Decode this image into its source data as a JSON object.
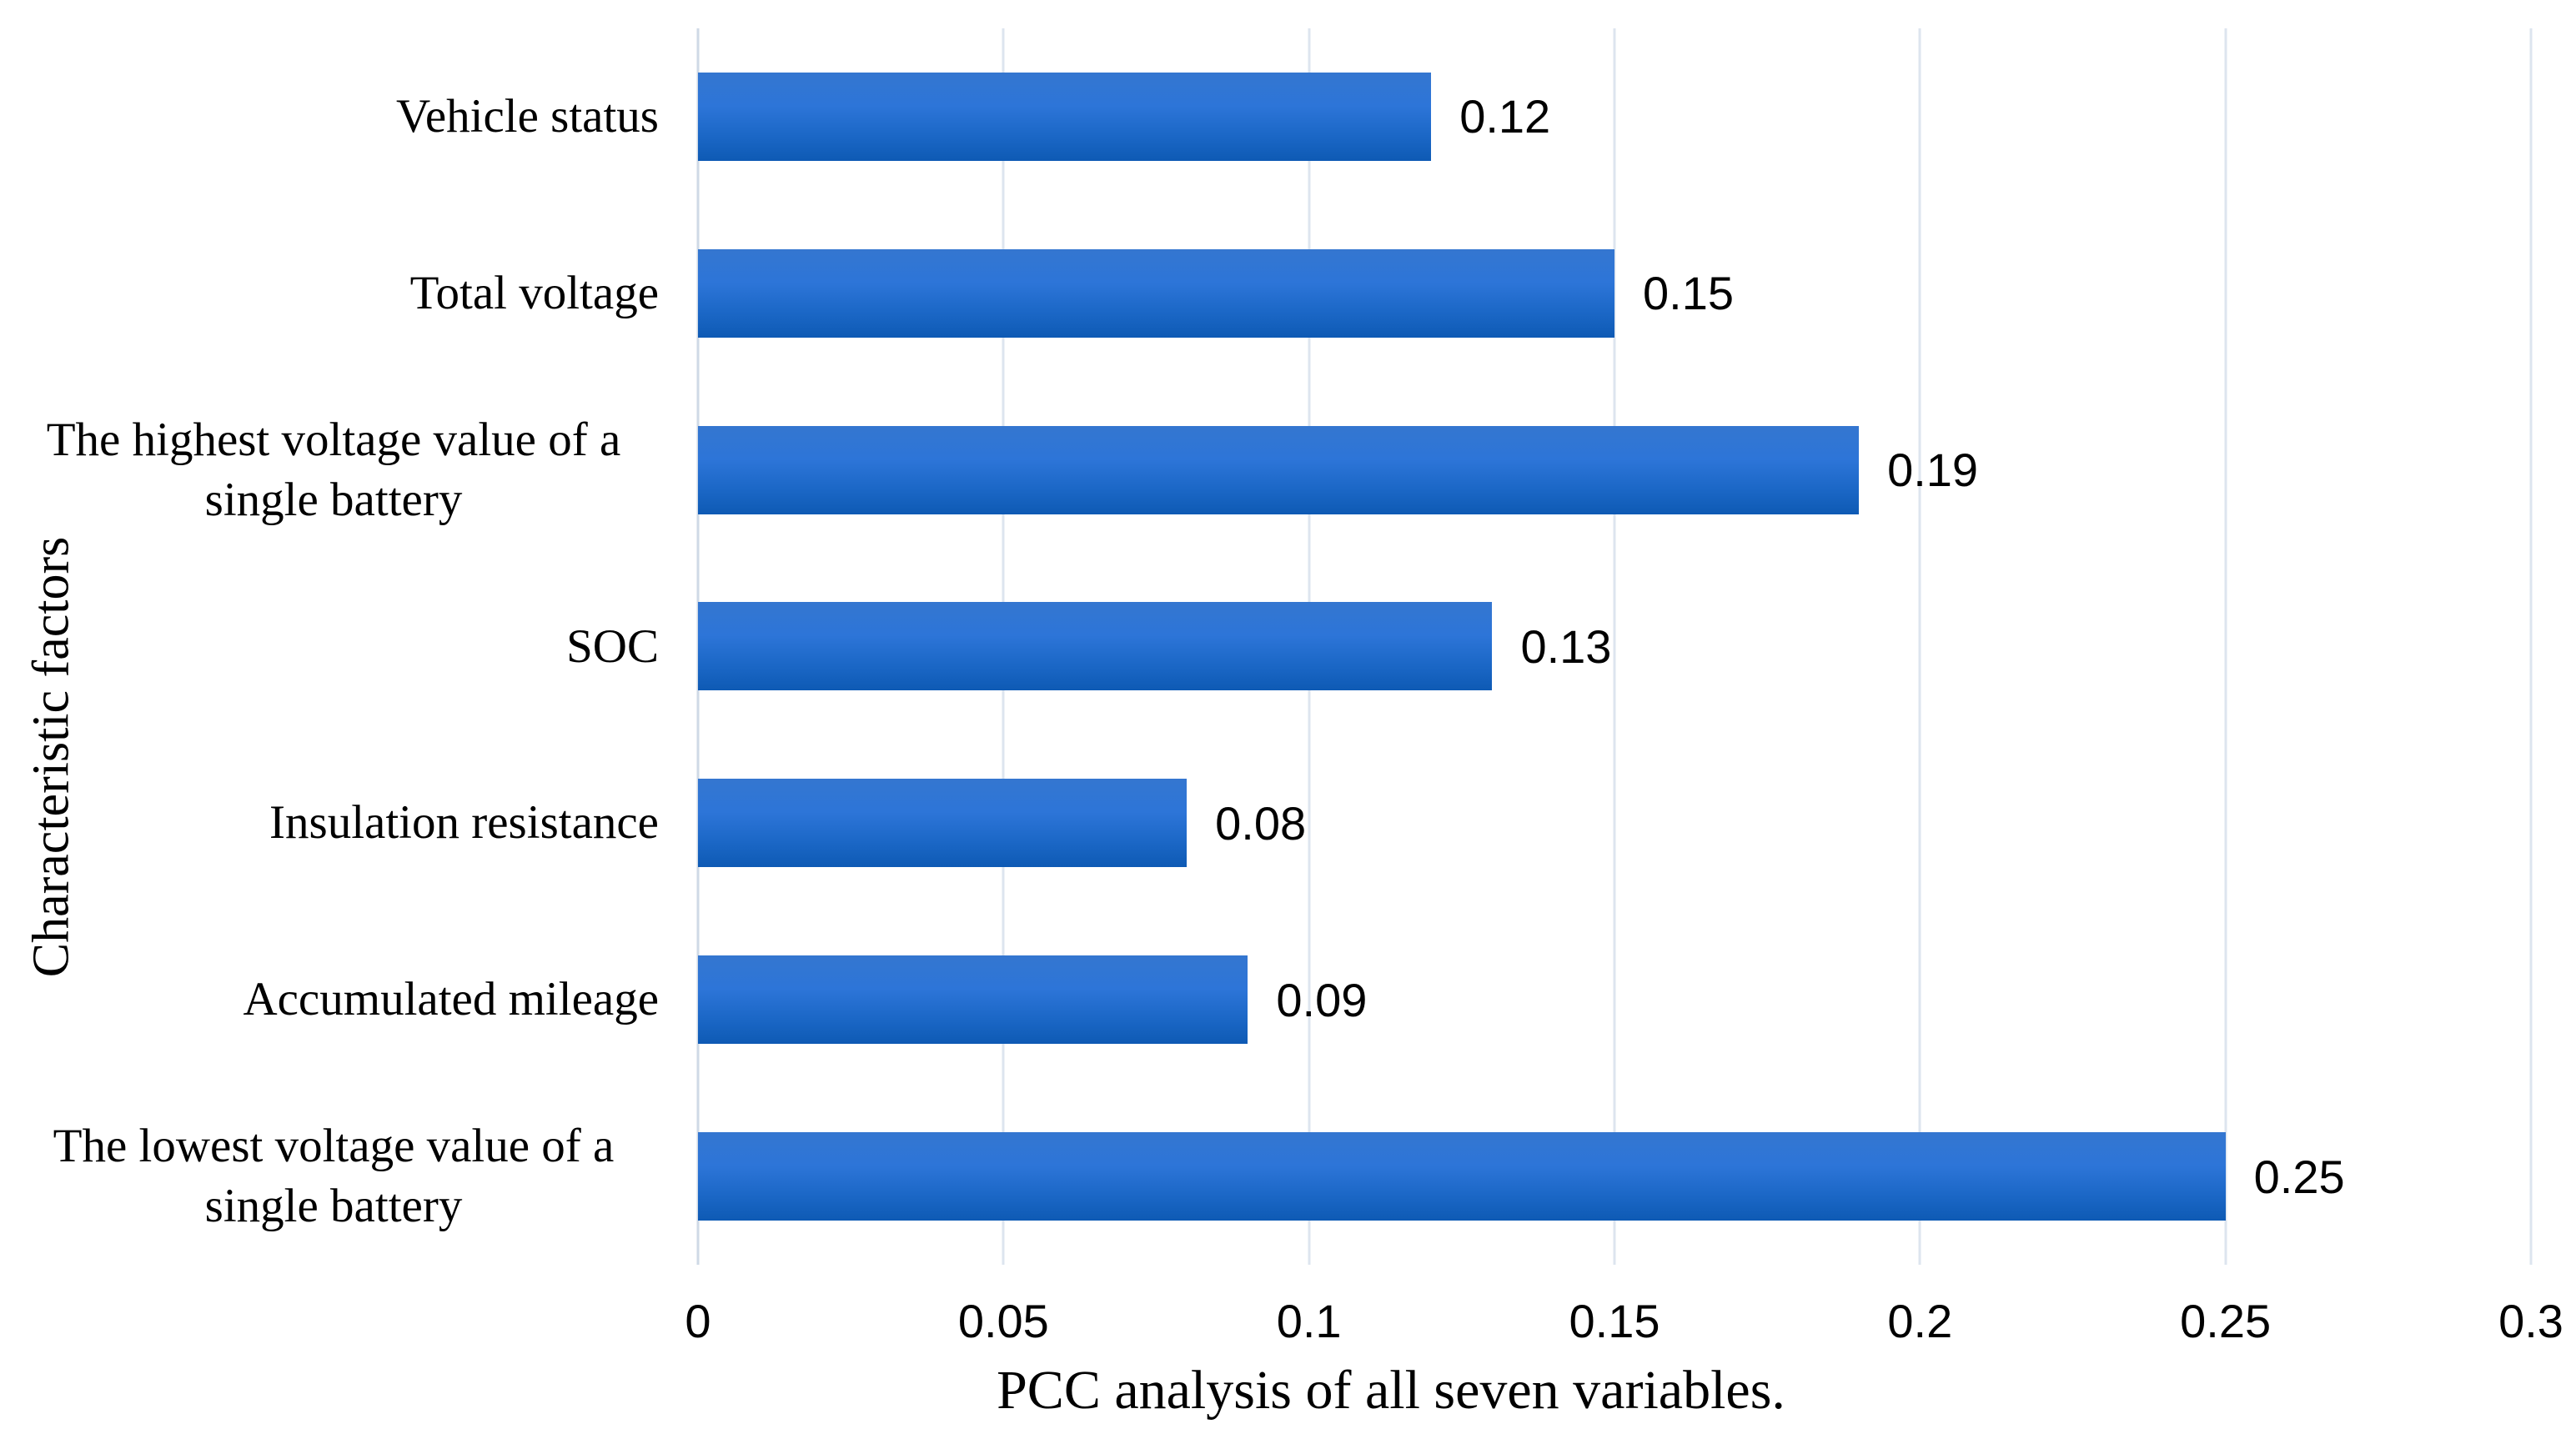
{
  "chart_data": {
    "type": "bar",
    "orientation": "horizontal",
    "title": "",
    "xlabel": "PCC analysis of all seven variables.",
    "ylabel": "Characteristic factors",
    "categories": [
      "Vehicle status",
      "Total voltage",
      "The highest voltage value of a single battery",
      "SOC",
      "Insulation resistance",
      "Accumulated mileage",
      "The lowest voltage value of a single battery"
    ],
    "values": [
      0.12,
      0.15,
      0.19,
      0.13,
      0.08,
      0.09,
      0.25
    ],
    "value_labels": [
      "0.12",
      "0.15",
      "0.19",
      "0.13",
      "0.08",
      "0.09",
      "0.25"
    ],
    "xlim": [
      0,
      0.3
    ],
    "x_ticks": [
      0,
      0.05,
      0.1,
      0.15,
      0.2,
      0.25,
      0.3
    ],
    "x_tick_labels": [
      "0",
      "0.05",
      "0.1",
      "0.15",
      "0.2",
      "0.25",
      "0.3"
    ],
    "grid": "vertical-gridlines-at-each-tick",
    "legend": "none",
    "bar_color_top": "#3476d0",
    "bar_color_mid": "#2d75d8",
    "bar_color_low": "#1b67c6",
    "bar_color_bottom": "#0e5ab4",
    "gridline_color": "#dde5ef",
    "axis_line_color": "#cfd9e6",
    "text_color": "#000000",
    "background_color": "#ffffff"
  }
}
